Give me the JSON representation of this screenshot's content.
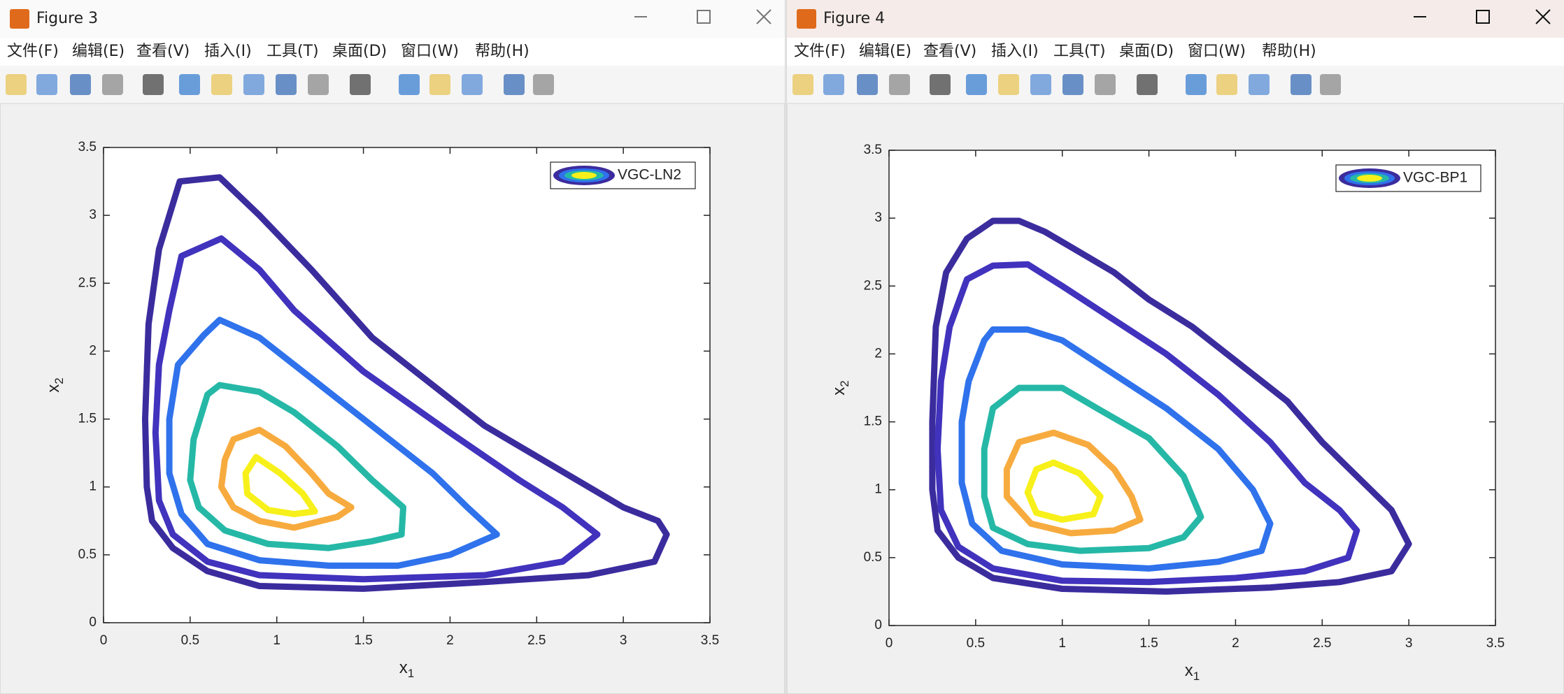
{
  "windows": [
    {
      "title": "Figure 3",
      "menu": [
        "文件(F)",
        "编辑(E)",
        "查看(V)",
        "插入(I)",
        "工具(T)",
        "桌面(D)",
        "窗口(W)",
        "帮助(H)"
      ]
    },
    {
      "title": "Figure 4",
      "menu": [
        "文件(F)",
        "编辑(E)",
        "查看(V)",
        "插入(I)",
        "工具(T)",
        "桌面(D)",
        "窗口(W)",
        "帮助(H)"
      ]
    }
  ],
  "chart_data": [
    {
      "type": "contour",
      "legend": "VGC-LN2",
      "xlim": [
        0,
        3.5
      ],
      "ylim": [
        0,
        3.5
      ],
      "xticks": [
        0,
        0.5,
        1,
        1.5,
        2,
        2.5,
        3,
        3.5
      ],
      "yticks": [
        0,
        0.5,
        1,
        1.5,
        2,
        2.5,
        3,
        3.5
      ],
      "xlabel": {
        "text": "x",
        "subscript": "1"
      },
      "ylabel": {
        "text": "x",
        "subscript": "2"
      },
      "contours": [
        {
          "color": "#3b2c9e",
          "x": [
            0.44,
            0.67,
            0.9,
            1.2,
            1.55,
            2.0,
            2.2,
            2.6,
            3.0,
            3.2,
            3.25,
            3.18,
            2.8,
            2.2,
            1.5,
            0.9,
            0.6,
            0.4,
            0.28,
            0.25,
            0.24,
            0.26,
            0.32,
            0.44
          ],
          "y": [
            3.25,
            3.28,
            3.0,
            2.6,
            2.1,
            1.65,
            1.45,
            1.15,
            0.85,
            0.75,
            0.65,
            0.45,
            0.35,
            0.3,
            0.25,
            0.27,
            0.38,
            0.55,
            0.75,
            1.0,
            1.5,
            2.2,
            2.75,
            3.25
          ]
        },
        {
          "color": "#4133bd",
          "x": [
            0.45,
            0.68,
            0.9,
            1.1,
            1.5,
            2.0,
            2.4,
            2.65,
            2.85,
            2.65,
            2.2,
            1.5,
            0.9,
            0.6,
            0.4,
            0.32,
            0.3,
            0.32,
            0.38,
            0.45
          ],
          "y": [
            2.7,
            2.83,
            2.6,
            2.3,
            1.85,
            1.4,
            1.05,
            0.85,
            0.65,
            0.45,
            0.35,
            0.32,
            0.35,
            0.45,
            0.65,
            0.9,
            1.4,
            1.9,
            2.3,
            2.7
          ]
        },
        {
          "color": "#2f72ec",
          "x": [
            0.58,
            0.67,
            0.9,
            1.2,
            1.5,
            1.9,
            2.1,
            2.27,
            2.0,
            1.7,
            1.3,
            0.9,
            0.6,
            0.45,
            0.38,
            0.38,
            0.43,
            0.58
          ],
          "y": [
            2.12,
            2.23,
            2.1,
            1.8,
            1.5,
            1.1,
            0.85,
            0.65,
            0.5,
            0.42,
            0.42,
            0.46,
            0.58,
            0.8,
            1.1,
            1.5,
            1.9,
            2.12
          ]
        },
        {
          "color": "#26b8a6",
          "x": [
            0.6,
            0.67,
            0.9,
            1.1,
            1.35,
            1.55,
            1.73,
            1.72,
            1.55,
            1.3,
            0.95,
            0.7,
            0.55,
            0.5,
            0.52,
            0.6
          ],
          "y": [
            1.68,
            1.75,
            1.7,
            1.55,
            1.3,
            1.05,
            0.85,
            0.65,
            0.6,
            0.55,
            0.58,
            0.68,
            0.85,
            1.05,
            1.35,
            1.68
          ]
        },
        {
          "color": "#f7ab3e",
          "x": [
            0.75,
            0.9,
            1.05,
            1.2,
            1.3,
            1.43,
            1.35,
            1.1,
            0.9,
            0.75,
            0.68,
            0.7,
            0.75
          ],
          "y": [
            1.35,
            1.42,
            1.3,
            1.1,
            0.95,
            0.85,
            0.78,
            0.7,
            0.75,
            0.85,
            1.0,
            1.2,
            1.35
          ]
        },
        {
          "color": "#f7f01a",
          "x": [
            0.88,
            1.02,
            1.15,
            1.22,
            1.1,
            0.95,
            0.83,
            0.82,
            0.88
          ],
          "y": [
            1.22,
            1.1,
            0.95,
            0.82,
            0.8,
            0.83,
            0.95,
            1.1,
            1.22
          ]
        }
      ]
    },
    {
      "type": "contour",
      "legend": "VGC-BP1",
      "xlim": [
        0,
        3.5
      ],
      "ylim": [
        0,
        3.5
      ],
      "xticks": [
        0,
        0.5,
        1,
        1.5,
        2,
        2.5,
        3,
        3.5
      ],
      "yticks": [
        0,
        0.5,
        1,
        1.5,
        2,
        2.5,
        3,
        3.5
      ],
      "xlabel": {
        "text": "x",
        "subscript": "1"
      },
      "ylabel": {
        "text": "x",
        "subscript": "2"
      },
      "contours": [
        {
          "color": "#3b2c9e",
          "x": [
            0.45,
            0.6,
            0.75,
            0.9,
            1.1,
            1.3,
            1.5,
            1.75,
            2.0,
            2.3,
            2.5,
            2.7,
            2.9,
            3.0,
            2.9,
            2.6,
            2.2,
            1.6,
            1.0,
            0.6,
            0.4,
            0.28,
            0.25,
            0.25,
            0.27,
            0.33,
            0.45
          ],
          "y": [
            2.85,
            2.98,
            2.98,
            2.9,
            2.75,
            2.6,
            2.4,
            2.2,
            1.95,
            1.65,
            1.35,
            1.1,
            0.85,
            0.6,
            0.4,
            0.32,
            0.28,
            0.25,
            0.27,
            0.35,
            0.5,
            0.7,
            1.0,
            1.5,
            2.2,
            2.6,
            2.85
          ]
        },
        {
          "color": "#4133bd",
          "x": [
            0.45,
            0.6,
            0.8,
            1.0,
            1.3,
            1.6,
            1.9,
            2.2,
            2.4,
            2.6,
            2.7,
            2.65,
            2.4,
            2.0,
            1.5,
            1.0,
            0.6,
            0.4,
            0.3,
            0.28,
            0.3,
            0.35,
            0.45
          ],
          "y": [
            2.55,
            2.65,
            2.66,
            2.5,
            2.25,
            2.0,
            1.7,
            1.35,
            1.05,
            0.85,
            0.7,
            0.5,
            0.4,
            0.35,
            0.32,
            0.33,
            0.42,
            0.58,
            0.85,
            1.3,
            1.8,
            2.2,
            2.55
          ]
        },
        {
          "color": "#2f72ec",
          "x": [
            0.55,
            0.6,
            0.8,
            1.0,
            1.3,
            1.6,
            1.9,
            2.1,
            2.2,
            2.15,
            1.9,
            1.5,
            1.0,
            0.65,
            0.48,
            0.42,
            0.42,
            0.46,
            0.55
          ],
          "y": [
            2.1,
            2.18,
            2.18,
            2.1,
            1.85,
            1.6,
            1.3,
            1.0,
            0.75,
            0.55,
            0.47,
            0.42,
            0.45,
            0.55,
            0.75,
            1.05,
            1.5,
            1.8,
            2.1
          ]
        },
        {
          "color": "#26b8a6",
          "x": [
            0.6,
            0.75,
            1.0,
            1.2,
            1.5,
            1.7,
            1.8,
            1.7,
            1.5,
            1.1,
            0.8,
            0.6,
            0.55,
            0.55,
            0.6
          ],
          "y": [
            1.6,
            1.75,
            1.75,
            1.6,
            1.38,
            1.1,
            0.8,
            0.65,
            0.57,
            0.55,
            0.6,
            0.72,
            0.95,
            1.3,
            1.6
          ]
        },
        {
          "color": "#f7ab3e",
          "x": [
            0.75,
            0.95,
            1.15,
            1.3,
            1.4,
            1.45,
            1.3,
            1.05,
            0.82,
            0.68,
            0.68,
            0.75
          ],
          "y": [
            1.35,
            1.42,
            1.33,
            1.15,
            0.95,
            0.78,
            0.7,
            0.68,
            0.75,
            0.95,
            1.15,
            1.35
          ]
        },
        {
          "color": "#f7f01a",
          "x": [
            0.85,
            0.95,
            1.1,
            1.22,
            1.18,
            1.0,
            0.85,
            0.8,
            0.85
          ],
          "y": [
            1.15,
            1.2,
            1.12,
            0.95,
            0.82,
            0.78,
            0.83,
            0.98,
            1.15
          ]
        }
      ]
    }
  ]
}
